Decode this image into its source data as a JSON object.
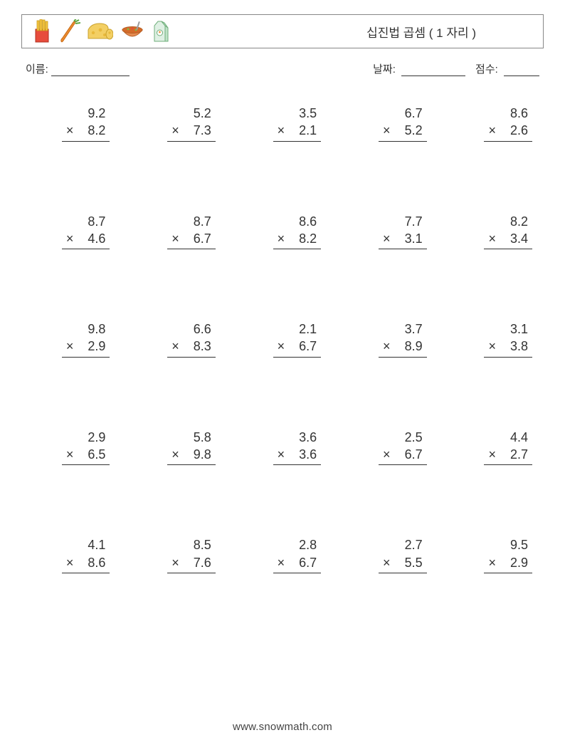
{
  "header": {
    "title": "십진법 곱셈 ( 1 자리 )"
  },
  "info": {
    "name_label": "이름:",
    "date_label": "날짜:",
    "score_label": "점수:"
  },
  "operator": "×",
  "problems": [
    {
      "a": "9.2",
      "b": "8.2"
    },
    {
      "a": "5.2",
      "b": "7.3"
    },
    {
      "a": "3.5",
      "b": "2.1"
    },
    {
      "a": "6.7",
      "b": "5.2"
    },
    {
      "a": "8.6",
      "b": "2.6"
    },
    {
      "a": "8.7",
      "b": "4.6"
    },
    {
      "a": "8.7",
      "b": "6.7"
    },
    {
      "a": "8.6",
      "b": "8.2"
    },
    {
      "a": "7.7",
      "b": "3.1"
    },
    {
      "a": "8.2",
      "b": "3.4"
    },
    {
      "a": "9.8",
      "b": "2.9"
    },
    {
      "a": "6.6",
      "b": "8.3"
    },
    {
      "a": "2.1",
      "b": "6.7"
    },
    {
      "a": "3.7",
      "b": "8.9"
    },
    {
      "a": "3.1",
      "b": "3.8"
    },
    {
      "a": "2.9",
      "b": "6.5"
    },
    {
      "a": "5.8",
      "b": "9.8"
    },
    {
      "a": "3.6",
      "b": "3.6"
    },
    {
      "a": "2.5",
      "b": "6.7"
    },
    {
      "a": "4.4",
      "b": "2.7"
    },
    {
      "a": "4.1",
      "b": "8.6"
    },
    {
      "a": "8.5",
      "b": "7.6"
    },
    {
      "a": "2.8",
      "b": "6.7"
    },
    {
      "a": "2.7",
      "b": "5.5"
    },
    {
      "a": "9.5",
      "b": "2.9"
    }
  ],
  "footer": {
    "url": "www.snowmath.com"
  },
  "colors": {
    "text": "#333333",
    "border": "#888888",
    "line": "#333333",
    "background": "#ffffff"
  }
}
